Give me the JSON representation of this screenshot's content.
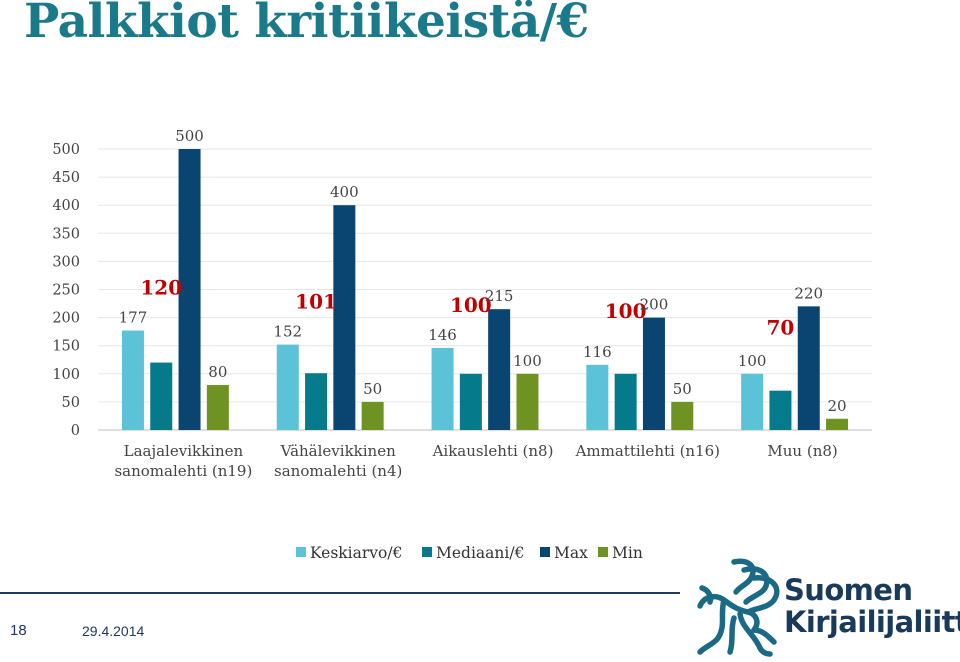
{
  "slide": {
    "title": "Palkkiot kritiikeistä/€",
    "page_number": "18",
    "date": "29.4.2014"
  },
  "logo": {
    "icon": "pegasus-icon",
    "line1": "Suomen",
    "line2": "Kirjailijaliitto"
  },
  "colors": {
    "title": "#1b7a8a",
    "Keskiarvo/€": "#5bc2d8",
    "Mediaani/€": "#047a8a",
    "Max": "#0a4470",
    "Min": "#6e9322",
    "annotation": "#c00000",
    "footer": "#1f3864"
  },
  "chart_data": {
    "type": "bar",
    "categories": [
      "Laajalevikkinen sanomalehti (n19)",
      "Vähälevikkinen sanomalehti (n4)",
      "Aikauslehti (n8)",
      "Ammattilehti (n16)",
      "Muu (n8)"
    ],
    "category_lines": [
      [
        "Laajalevikkinen",
        "sanomalehti (n19)"
      ],
      [
        "Vähälevikkinen",
        "sanomalehti (n4)"
      ],
      [
        "Aikauslehti (n8)"
      ],
      [
        "Ammattilehti (n16)"
      ],
      [
        "Muu (n8)"
      ]
    ],
    "series": [
      {
        "name": "Keskiarvo/€",
        "values": [
          177,
          152,
          146,
          116,
          100
        ],
        "labels": [
          "177",
          "152",
          "146",
          "116",
          "100"
        ]
      },
      {
        "name": "Mediaani/€",
        "values": [
          120,
          101,
          100,
          100,
          70
        ],
        "labels": [
          "120",
          "101",
          "100",
          "100",
          "70"
        ]
      },
      {
        "name": "Max",
        "values": [
          500,
          400,
          215,
          200,
          220
        ],
        "labels": [
          "500",
          "400",
          "215",
          "200",
          "220"
        ]
      },
      {
        "name": "Min",
        "values": [
          80,
          50,
          100,
          50,
          20
        ],
        "labels": [
          "80",
          "50",
          "100",
          "50",
          "20"
        ]
      }
    ],
    "ylim": [
      0,
      500
    ],
    "yticks": [
      "0",
      "50",
      "100",
      "150",
      "200",
      "250",
      "300",
      "350",
      "400",
      "450",
      "500"
    ],
    "grid": true,
    "legend": "bottom-center",
    "title": "",
    "xlabel": "",
    "ylabel": ""
  }
}
